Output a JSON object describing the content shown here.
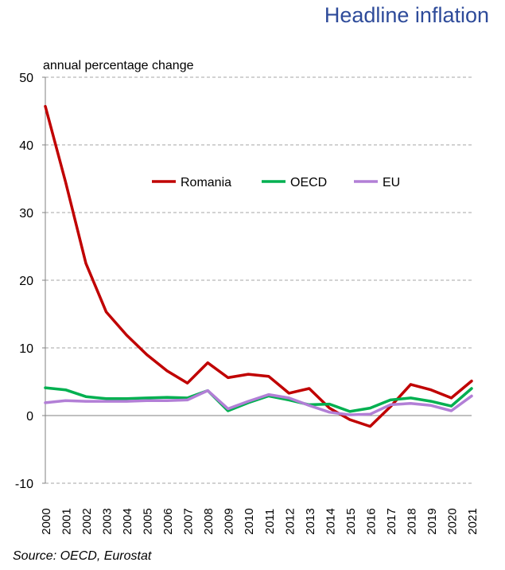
{
  "chart_data": {
    "type": "line",
    "title": "Headline inflation",
    "ylabel": "annual percentage change",
    "xlabel": "",
    "source": "Source: OECD, Eurostat",
    "categories": [
      "2000",
      "2001",
      "2002",
      "2003",
      "2004",
      "2005",
      "2006",
      "2007",
      "2008",
      "2009",
      "2010",
      "2011",
      "2012",
      "2013",
      "2014",
      "2015",
      "2016",
      "2017",
      "2018",
      "2019",
      "2020",
      "2021"
    ],
    "ylim": [
      -10,
      50
    ],
    "yticks": [
      -10,
      0,
      10,
      20,
      30,
      40,
      50
    ],
    "grid": true,
    "legend_position": "center",
    "series": [
      {
        "name": "Romania",
        "color": "#c00000",
        "values": [
          45.7,
          34.5,
          22.5,
          15.3,
          11.9,
          9.0,
          6.6,
          4.8,
          7.8,
          5.6,
          6.1,
          5.8,
          3.3,
          4.0,
          1.1,
          -0.6,
          -1.6,
          1.3,
          4.6,
          3.8,
          2.6,
          5.1
        ]
      },
      {
        "name": "OECD",
        "color": "#00b050",
        "values": [
          4.1,
          3.8,
          2.8,
          2.5,
          2.5,
          2.6,
          2.7,
          2.6,
          3.7,
          0.7,
          1.9,
          2.9,
          2.3,
          1.6,
          1.7,
          0.6,
          1.1,
          2.3,
          2.6,
          2.1,
          1.4,
          4.0
        ]
      },
      {
        "name": "EU",
        "color": "#b27fd6",
        "values": [
          1.9,
          2.2,
          2.1,
          2.1,
          2.1,
          2.2,
          2.2,
          2.3,
          3.7,
          1.0,
          2.1,
          3.1,
          2.6,
          1.5,
          0.5,
          0.1,
          0.2,
          1.6,
          1.8,
          1.5,
          0.7,
          2.9
        ]
      }
    ]
  }
}
